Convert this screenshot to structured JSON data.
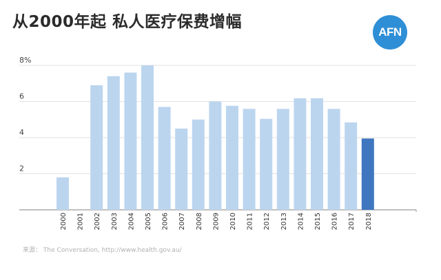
{
  "title": "从2000年起 私人医疗保费增幅",
  "logo_text": "AFN",
  "source": "来源： The Conversation, http://www.health.gov.au/",
  "colors": {
    "bar": "#bcd5ef",
    "highlight": "#3f76c0",
    "grid": "#e2e2e2",
    "axis": "#9a9a9a",
    "logo": "#2f8fd6"
  },
  "chart_data": {
    "type": "bar",
    "categories": [
      "2000",
      "2001",
      "2002",
      "2003",
      "2004",
      "2005",
      "2006",
      "2007",
      "2008",
      "2009",
      "2010",
      "2011",
      "2012",
      "2013",
      "2014",
      "2015",
      "2016",
      "2017",
      "2018"
    ],
    "values": [
      1.8,
      0,
      6.9,
      7.4,
      7.6,
      8.0,
      5.7,
      4.5,
      5.0,
      6.0,
      5.76,
      5.59,
      5.04,
      5.59,
      6.18,
      6.18,
      5.59,
      4.84,
      3.95
    ],
    "highlight_index": 18,
    "y_ticks": [
      "",
      "2",
      "4",
      "6",
      "8%"
    ],
    "ylim": [
      0,
      8
    ],
    "grid": true,
    "title": "从2000年起 私人医疗保费增幅",
    "xlabel": "",
    "ylabel": ""
  }
}
